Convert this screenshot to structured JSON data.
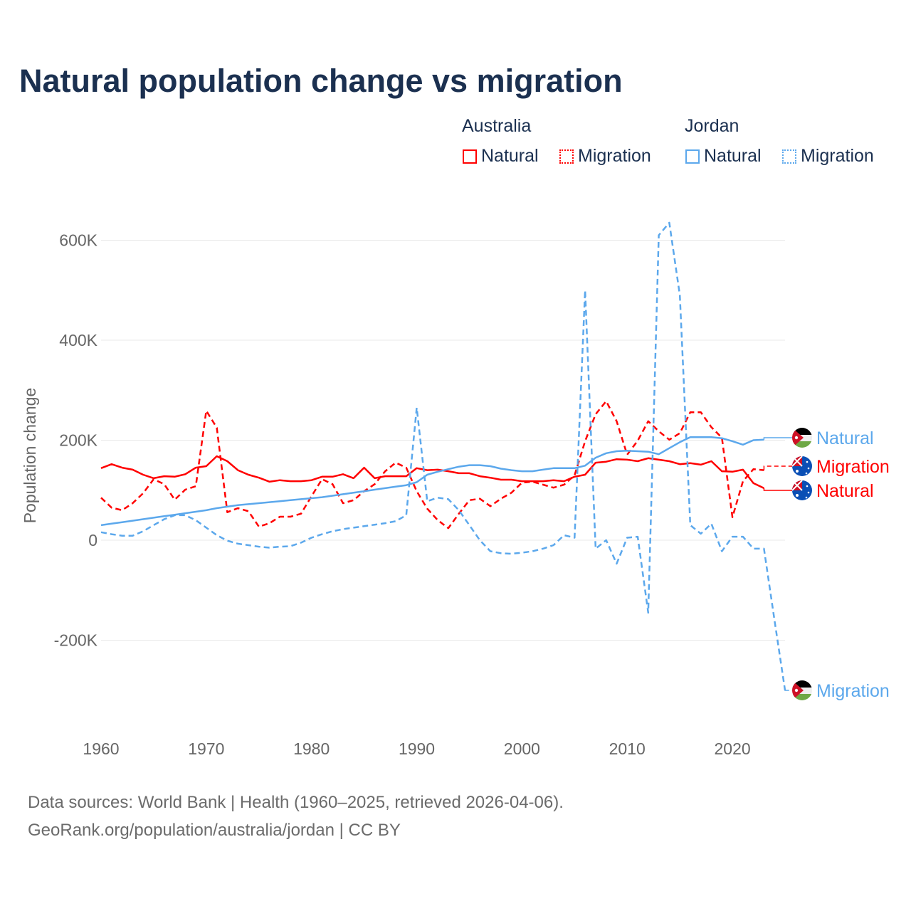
{
  "title": "Natural population change vs migration",
  "legend": {
    "groups": [
      {
        "name": "Australia",
        "items": [
          "Natural",
          "Migration"
        ],
        "color": "#ff0000"
      },
      {
        "name": "Jordan",
        "items": [
          "Natural",
          "Migration"
        ],
        "color": "#5ca8ec"
      }
    ]
  },
  "footer": {
    "line1": "Data sources: World Bank | Health (1960–2025, retrieved 2026-04-06).",
    "line2": "GeoRank.org/population/australia/jordan | CC BY"
  },
  "chart_data": {
    "type": "line",
    "title": "Natural population change vs migration",
    "xlabel": "",
    "ylabel": "Population change",
    "xlim": [
      1960,
      2025
    ],
    "ylim": [
      -300000,
      640000
    ],
    "x_ticks": [
      "1960",
      "1970",
      "1980",
      "1990",
      "2000",
      "2010",
      "2020"
    ],
    "y_ticks": [
      {
        "value": -200000,
        "label": "-200K"
      },
      {
        "value": 0,
        "label": "0"
      },
      {
        "value": 200000,
        "label": "200K"
      },
      {
        "value": 400000,
        "label": "400K"
      },
      {
        "value": 600000,
        "label": "600K"
      }
    ],
    "grid": true,
    "start_year": 1960,
    "series": [
      {
        "name": "Australia Natural",
        "end_label": "Natural",
        "country": "Australia",
        "color": "#ff0000",
        "dash": false,
        "values": [
          144,
          152,
          145,
          141,
          131,
          124,
          128,
          127,
          132,
          145,
          148,
          168,
          158,
          140,
          131,
          125,
          117,
          120,
          118,
          118,
          120,
          127,
          127,
          132,
          124,
          145,
          124,
          128,
          128,
          128,
          144,
          140,
          141,
          138,
          134,
          134,
          128,
          125,
          121,
          121,
          118,
          118,
          118,
          120,
          118,
          127,
          131,
          155,
          157,
          162,
          161,
          158,
          164,
          161,
          158,
          152,
          154,
          151,
          158,
          138,
          137,
          141,
          114,
          104
        ]
      },
      {
        "name": "Australia Migration",
        "end_label": "Migration",
        "country": "Australia",
        "color": "#ff0000",
        "dash": true,
        "values": [
          85,
          65,
          60,
          74,
          94,
          122,
          112,
          81,
          101,
          108,
          259,
          225,
          56,
          64,
          58,
          27,
          34,
          47,
          47,
          53,
          88,
          122,
          112,
          74,
          80,
          98,
          112,
          138,
          155,
          145,
          98,
          63,
          40,
          24,
          53,
          80,
          83,
          68,
          83,
          95,
          115,
          117,
          111,
          105,
          111,
          130,
          198,
          252,
          278,
          238,
          171,
          199,
          238,
          218,
          201,
          214,
          256,
          256,
          226,
          205,
          46,
          118,
          142,
          140
        ]
      },
      {
        "name": "Jordan Natural",
        "end_label": "Natural",
        "country": "Jordan",
        "color": "#5ca8ec",
        "dash": false,
        "values": [
          30,
          33,
          36,
          39,
          42,
          45,
          48,
          51,
          54,
          57,
          60,
          64,
          67,
          70,
          72,
          74,
          76,
          78,
          80,
          82,
          84,
          86,
          89,
          92,
          95,
          98,
          101,
          104,
          107,
          110,
          116,
          131,
          137,
          142,
          147,
          150,
          150,
          148,
          143,
          140,
          138,
          138,
          141,
          144,
          144,
          144,
          149,
          165,
          174,
          178,
          179,
          178,
          177,
          172,
          184,
          196,
          206,
          206,
          206,
          204,
          198,
          191,
          200,
          201
        ]
      },
      {
        "name": "Jordan Migration",
        "end_label": "Migration",
        "country": "Jordan",
        "color": "#5ca8ec",
        "dash": true,
        "values": [
          16,
          12,
          9,
          9,
          18,
          30,
          42,
          50,
          50,
          40,
          25,
          10,
          -1,
          -7,
          -10,
          -13,
          -15,
          -13,
          -12,
          -5,
          5,
          12,
          18,
          22,
          25,
          28,
          31,
          34,
          38,
          50,
          265,
          78,
          85,
          82,
          60,
          30,
          0,
          -22,
          -26,
          -27,
          -25,
          -22,
          -17,
          -10,
          10,
          5,
          500,
          -17,
          0,
          -47,
          5,
          7,
          -145,
          610,
          635,
          490,
          30,
          13,
          33,
          -22,
          7,
          7,
          -17,
          -17,
          -160,
          -300
        ]
      }
    ],
    "value_unit": "thousands"
  }
}
